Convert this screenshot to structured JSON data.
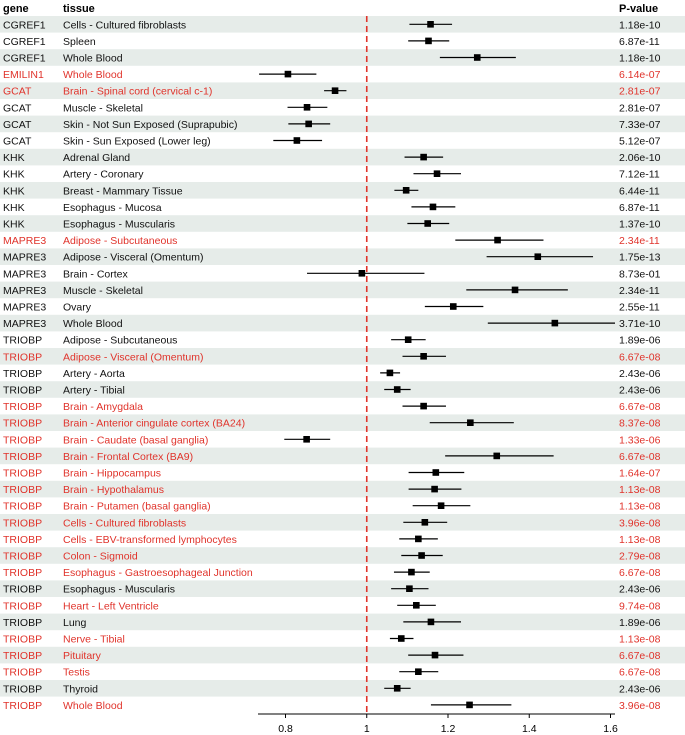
{
  "headers": {
    "gene": "gene",
    "tissue": "tissue",
    "pvalue": "P-value"
  },
  "colors": {
    "significant": "#e0332b",
    "normal": "#111111",
    "stripe": "#e6ece9",
    "reference_line": "#e0332b"
  },
  "chart_data": {
    "type": "forest",
    "reference_value": 1,
    "xlim": [
      0.7,
      1.65
    ],
    "xticks": [
      0.8,
      1,
      1.2,
      1.4,
      1.6
    ],
    "xtick_labels": [
      "0.8",
      "1",
      "1.2",
      "1.4",
      "1.6"
    ],
    "rows": [
      {
        "gene": "CGREF1",
        "tissue": "Cells - Cultured fibroblasts",
        "estimate": 1.157,
        "lower": 1.105,
        "upper": 1.21,
        "pvalue": "1.18e-10",
        "highlight": false
      },
      {
        "gene": "CGREF1",
        "tissue": "Spleen",
        "estimate": 1.152,
        "lower": 1.102,
        "upper": 1.203,
        "pvalue": "6.87e-11",
        "highlight": false
      },
      {
        "gene": "CGREF1",
        "tissue": "Whole Blood",
        "estimate": 1.272,
        "lower": 1.18,
        "upper": 1.367,
        "pvalue": "1.18e-10",
        "highlight": false
      },
      {
        "gene": "EMILIN1",
        "tissue": "Whole Blood",
        "estimate": 0.806,
        "lower": 0.735,
        "upper": 0.876,
        "pvalue": "6.14e-07",
        "highlight": true
      },
      {
        "gene": "GCAT",
        "tissue": "Brain - Spinal cord (cervical c-1)",
        "estimate": 0.922,
        "lower": 0.895,
        "upper": 0.95,
        "pvalue": "2.81e-07",
        "highlight": true
      },
      {
        "gene": "GCAT",
        "tissue": "Muscle - Skeletal",
        "estimate": 0.853,
        "lower": 0.805,
        "upper": 0.903,
        "pvalue": "2.81e-07",
        "highlight": false
      },
      {
        "gene": "GCAT",
        "tissue": "Skin - Not Sun Exposed (Suprapubic)",
        "estimate": 0.857,
        "lower": 0.807,
        "upper": 0.91,
        "pvalue": "7.33e-07",
        "highlight": false
      },
      {
        "gene": "GCAT",
        "tissue": "Skin - Sun Exposed (Lower leg)",
        "estimate": 0.828,
        "lower": 0.77,
        "upper": 0.89,
        "pvalue": "5.12e-07",
        "highlight": false
      },
      {
        "gene": "KHK",
        "tissue": "Adrenal Gland",
        "estimate": 1.14,
        "lower": 1.093,
        "upper": 1.188,
        "pvalue": "2.06e-10",
        "highlight": false
      },
      {
        "gene": "KHK",
        "tissue": "Artery - Coronary",
        "estimate": 1.173,
        "lower": 1.115,
        "upper": 1.232,
        "pvalue": "7.12e-11",
        "highlight": false
      },
      {
        "gene": "KHK",
        "tissue": "Breast - Mammary Tissue",
        "estimate": 1.097,
        "lower": 1.068,
        "upper": 1.127,
        "pvalue": "6.44e-11",
        "highlight": false
      },
      {
        "gene": "KHK",
        "tissue": "Esophagus - Mucosa",
        "estimate": 1.163,
        "lower": 1.11,
        "upper": 1.218,
        "pvalue": "6.87e-11",
        "highlight": false
      },
      {
        "gene": "KHK",
        "tissue": "Esophagus - Muscularis",
        "estimate": 1.15,
        "lower": 1.1,
        "upper": 1.203,
        "pvalue": "1.37e-10",
        "highlight": false
      },
      {
        "gene": "MAPRE3",
        "tissue": "Adipose - Subcutaneous",
        "estimate": 1.322,
        "lower": 1.218,
        "upper": 1.435,
        "pvalue": "2.34e-11",
        "highlight": true
      },
      {
        "gene": "MAPRE3",
        "tissue": "Adipose - Visceral (Omentum)",
        "estimate": 1.421,
        "lower": 1.295,
        "upper": 1.557,
        "pvalue": "1.75e-13",
        "highlight": false
      },
      {
        "gene": "MAPRE3",
        "tissue": "Brain - Cortex",
        "estimate": 0.988,
        "lower": 0.853,
        "upper": 1.142,
        "pvalue": "8.73e-01",
        "highlight": false
      },
      {
        "gene": "MAPRE3",
        "tissue": "Muscle - Skeletal",
        "estimate": 1.365,
        "lower": 1.245,
        "upper": 1.495,
        "pvalue": "2.34e-11",
        "highlight": false
      },
      {
        "gene": "MAPRE3",
        "tissue": "Ovary",
        "estimate": 1.213,
        "lower": 1.143,
        "upper": 1.287,
        "pvalue": "2.55e-11",
        "highlight": false
      },
      {
        "gene": "MAPRE3",
        "tissue": "Whole Blood",
        "estimate": 1.463,
        "lower": 1.298,
        "upper": 1.645,
        "pvalue": "3.71e-10",
        "highlight": false
      },
      {
        "gene": "TRIOBP",
        "tissue": "Adipose - Subcutaneous",
        "estimate": 1.102,
        "lower": 1.06,
        "upper": 1.145,
        "pvalue": "1.89e-06",
        "highlight": false
      },
      {
        "gene": "TRIOBP",
        "tissue": "Adipose - Visceral (Omentum)",
        "estimate": 1.14,
        "lower": 1.088,
        "upper": 1.195,
        "pvalue": "6.67e-08",
        "highlight": true
      },
      {
        "gene": "TRIOBP",
        "tissue": "Artery - Aorta",
        "estimate": 1.057,
        "lower": 1.033,
        "upper": 1.082,
        "pvalue": "2.43e-06",
        "highlight": false
      },
      {
        "gene": "TRIOBP",
        "tissue": "Artery - Tibial",
        "estimate": 1.075,
        "lower": 1.043,
        "upper": 1.108,
        "pvalue": "2.43e-06",
        "highlight": false
      },
      {
        "gene": "TRIOBP",
        "tissue": "Brain - Amygdala",
        "estimate": 1.14,
        "lower": 1.088,
        "upper": 1.195,
        "pvalue": "6.67e-08",
        "highlight": true
      },
      {
        "gene": "TRIOBP",
        "tissue": "Brain - Anterior cingulate cortex (BA24)",
        "estimate": 1.255,
        "lower": 1.155,
        "upper": 1.362,
        "pvalue": "8.37e-08",
        "highlight": true
      },
      {
        "gene": "TRIOBP",
        "tissue": "Brain - Caudate (basal ganglia)",
        "estimate": 0.852,
        "lower": 0.797,
        "upper": 0.91,
        "pvalue": "1.33e-06",
        "highlight": true
      },
      {
        "gene": "TRIOBP",
        "tissue": "Brain - Frontal Cortex (BA9)",
        "estimate": 1.32,
        "lower": 1.193,
        "upper": 1.46,
        "pvalue": "6.67e-08",
        "highlight": true
      },
      {
        "gene": "TRIOBP",
        "tissue": "Brain - Hippocampus",
        "estimate": 1.17,
        "lower": 1.103,
        "upper": 1.24,
        "pvalue": "1.64e-07",
        "highlight": true
      },
      {
        "gene": "TRIOBP",
        "tissue": "Brain - Hypothalamus",
        "estimate": 1.167,
        "lower": 1.103,
        "upper": 1.233,
        "pvalue": "1.13e-08",
        "highlight": true
      },
      {
        "gene": "TRIOBP",
        "tissue": "Brain - Putamen (basal ganglia)",
        "estimate": 1.183,
        "lower": 1.113,
        "upper": 1.255,
        "pvalue": "1.13e-08",
        "highlight": true
      },
      {
        "gene": "TRIOBP",
        "tissue": "Cells - Cultured fibroblasts",
        "estimate": 1.143,
        "lower": 1.09,
        "upper": 1.198,
        "pvalue": "3.96e-08",
        "highlight": true
      },
      {
        "gene": "TRIOBP",
        "tissue": "Cells - EBV-transformed lymphocytes",
        "estimate": 1.127,
        "lower": 1.08,
        "upper": 1.175,
        "pvalue": "1.13e-08",
        "highlight": true
      },
      {
        "gene": "TRIOBP",
        "tissue": "Colon - Sigmoid",
        "estimate": 1.135,
        "lower": 1.085,
        "upper": 1.187,
        "pvalue": "2.79e-08",
        "highlight": true
      },
      {
        "gene": "TRIOBP",
        "tissue": "Esophagus - Gastroesophageal Junction",
        "estimate": 1.11,
        "lower": 1.067,
        "upper": 1.155,
        "pvalue": "6.67e-08",
        "highlight": true
      },
      {
        "gene": "TRIOBP",
        "tissue": "Esophagus - Muscularis",
        "estimate": 1.105,
        "lower": 1.06,
        "upper": 1.152,
        "pvalue": "2.43e-06",
        "highlight": false
      },
      {
        "gene": "TRIOBP",
        "tissue": "Heart - Left Ventricle",
        "estimate": 1.122,
        "lower": 1.075,
        "upper": 1.17,
        "pvalue": "9.74e-08",
        "highlight": true
      },
      {
        "gene": "TRIOBP",
        "tissue": "Lung",
        "estimate": 1.158,
        "lower": 1.09,
        "upper": 1.232,
        "pvalue": "1.89e-06",
        "highlight": false
      },
      {
        "gene": "TRIOBP",
        "tissue": "Nerve - Tibial",
        "estimate": 1.085,
        "lower": 1.057,
        "upper": 1.115,
        "pvalue": "1.13e-08",
        "highlight": true
      },
      {
        "gene": "TRIOBP",
        "tissue": "Pituitary",
        "estimate": 1.168,
        "lower": 1.102,
        "upper": 1.238,
        "pvalue": "6.67e-08",
        "highlight": true
      },
      {
        "gene": "TRIOBP",
        "tissue": "Testis",
        "estimate": 1.127,
        "lower": 1.08,
        "upper": 1.176,
        "pvalue": "6.67e-08",
        "highlight": true
      },
      {
        "gene": "TRIOBP",
        "tissue": "Thyroid",
        "estimate": 1.075,
        "lower": 1.043,
        "upper": 1.108,
        "pvalue": "2.43e-06",
        "highlight": false
      },
      {
        "gene": "TRIOBP",
        "tissue": "Whole Blood",
        "estimate": 1.253,
        "lower": 1.158,
        "upper": 1.356,
        "pvalue": "3.96e-08",
        "highlight": true
      }
    ]
  }
}
